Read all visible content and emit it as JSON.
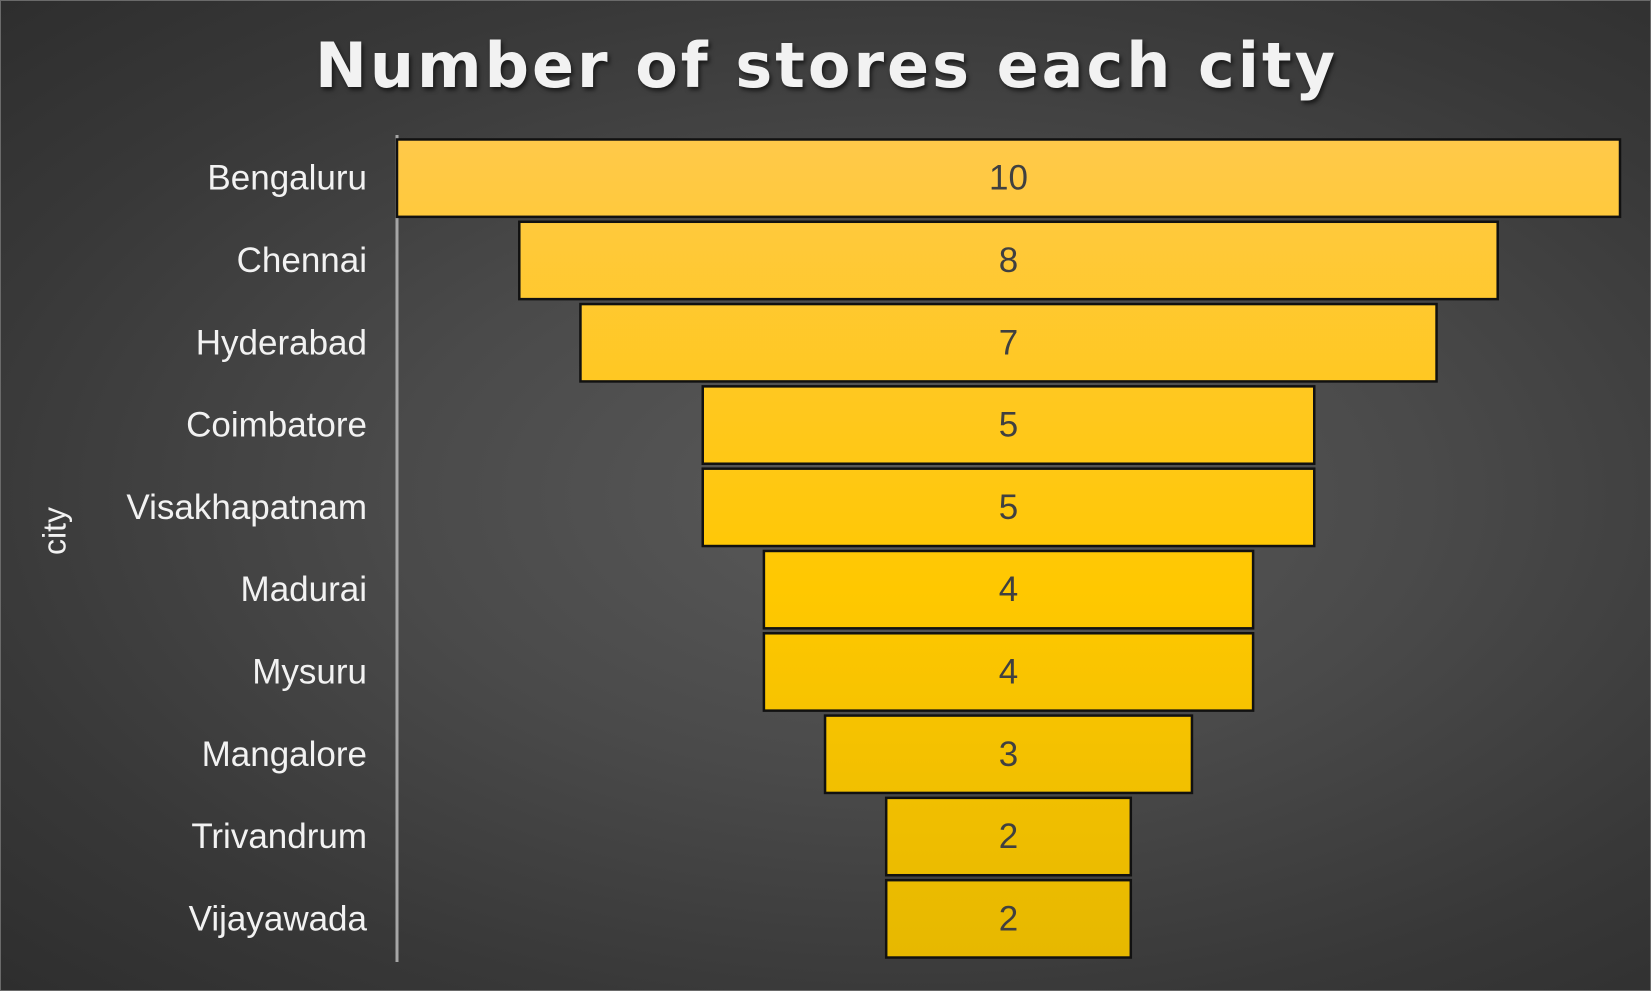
{
  "chart_data": {
    "type": "bar",
    "orientation": "horizontal",
    "style": "funnel",
    "title": "Number of stores each city",
    "ylabel": "city",
    "xlabel": "",
    "categories": [
      "Bengaluru",
      "Chennai",
      "Hyderabad",
      "Coimbatore",
      "Visakhapatnam",
      "Madurai",
      "Mysuru",
      "Mangalore",
      "Trivandrum",
      "Vijayawada"
    ],
    "values": [
      10,
      8,
      7,
      5,
      5,
      4,
      4,
      3,
      2,
      2
    ],
    "xlim": [
      0,
      10
    ],
    "data_labels": true,
    "grid": false,
    "legend": "none",
    "colors": {
      "bar_top": "#ffc94a",
      "bar_bottom": "#e6b800",
      "bar_border": "#111111",
      "axis_line": "#a6a6a6",
      "background": "#4a4a4a"
    }
  }
}
